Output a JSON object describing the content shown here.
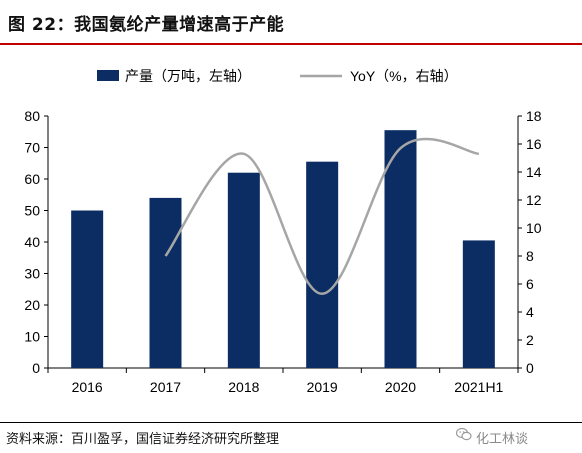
{
  "header": {
    "figure_title": "图 22：我国氨纶产量增速高于产能"
  },
  "footer": {
    "source": "资料来源：百川盈孚，国信证券经济研究所整理",
    "watermark": "化工林谈",
    "watermark_icon": "wechat-icon"
  },
  "chart_data": {
    "type": "bar",
    "categories": [
      "2016",
      "2017",
      "2018",
      "2019",
      "2020",
      "2021H1"
    ],
    "series": [
      {
        "name": "产量（万吨，左轴）",
        "type": "bar",
        "axis": "left",
        "color": "#0b2d63",
        "values": [
          50,
          54,
          62,
          65.5,
          75.5,
          40.5
        ]
      },
      {
        "name": "YoY（%，右轴）",
        "type": "line",
        "axis": "right",
        "color": "#a6a6a6",
        "values": [
          null,
          8,
          15.3,
          5.3,
          15.7,
          15.3
        ]
      }
    ],
    "left_axis": {
      "ylim": [
        0,
        80
      ],
      "ticks": [
        "0",
        "10",
        "20",
        "30",
        "40",
        "50",
        "60",
        "70",
        "80"
      ]
    },
    "right_axis": {
      "ylim": [
        0,
        18
      ],
      "ticks": [
        "0",
        "2",
        "4",
        "6",
        "8",
        "10",
        "12",
        "14",
        "16",
        "18"
      ]
    },
    "legend_position": "top",
    "grid": false
  }
}
